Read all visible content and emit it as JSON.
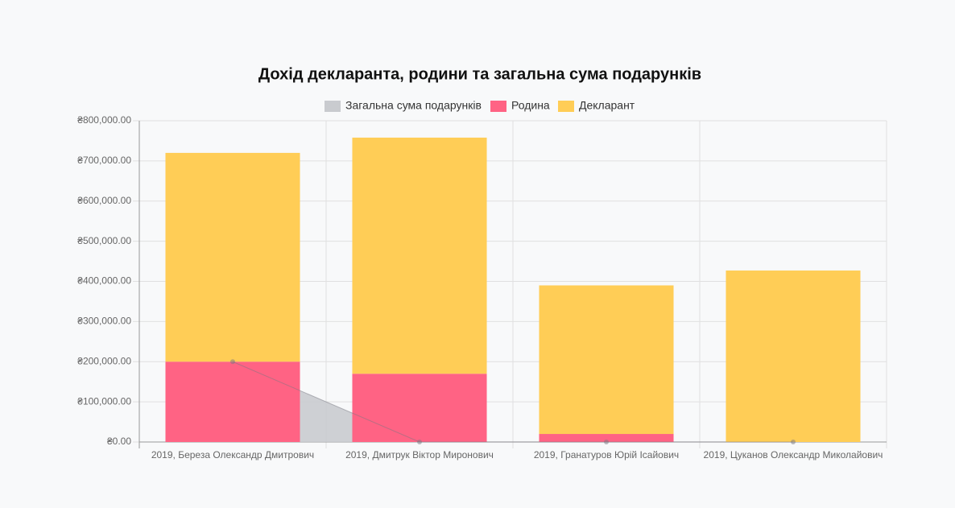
{
  "chart_data": {
    "type": "bar",
    "stacked": true,
    "title": "Дохід декларанта, родини та загальна сума подарунків",
    "categories": [
      "2019, Береза Олександр Дмитрович",
      "2019, Дмитрук Віктор Миронович",
      "2019, Гранатуров Юрій Ісайович",
      "2019, Цуканов Олександр Миколайович"
    ],
    "series": [
      {
        "name": "Загальна сума подарунків",
        "type": "line",
        "color": "#c9cbcf",
        "values": [
          200000,
          0,
          0,
          0
        ]
      },
      {
        "name": "Родина",
        "type": "bar",
        "color": "#ff6384",
        "values": [
          200000,
          170000,
          20000,
          0
        ]
      },
      {
        "name": "Декларант",
        "type": "bar",
        "color": "#ffcd56",
        "values": [
          520000,
          588000,
          370000,
          427000
        ]
      }
    ],
    "ylim": [
      0,
      800000
    ],
    "yticks": [
      {
        "value": 0,
        "label": "₴0.00"
      },
      {
        "value": 100000,
        "label": "₴100,000.00"
      },
      {
        "value": 200000,
        "label": "₴200,000.00"
      },
      {
        "value": 300000,
        "label": "₴300,000.00"
      },
      {
        "value": 400000,
        "label": "₴400,000.00"
      },
      {
        "value": 500000,
        "label": "₴500,000.00"
      },
      {
        "value": 600000,
        "label": "₴600,000.00"
      },
      {
        "value": 700000,
        "label": "₴700,000.00"
      },
      {
        "value": 800000,
        "label": "₴800,000.00"
      }
    ],
    "grid": true,
    "legend": "top"
  }
}
